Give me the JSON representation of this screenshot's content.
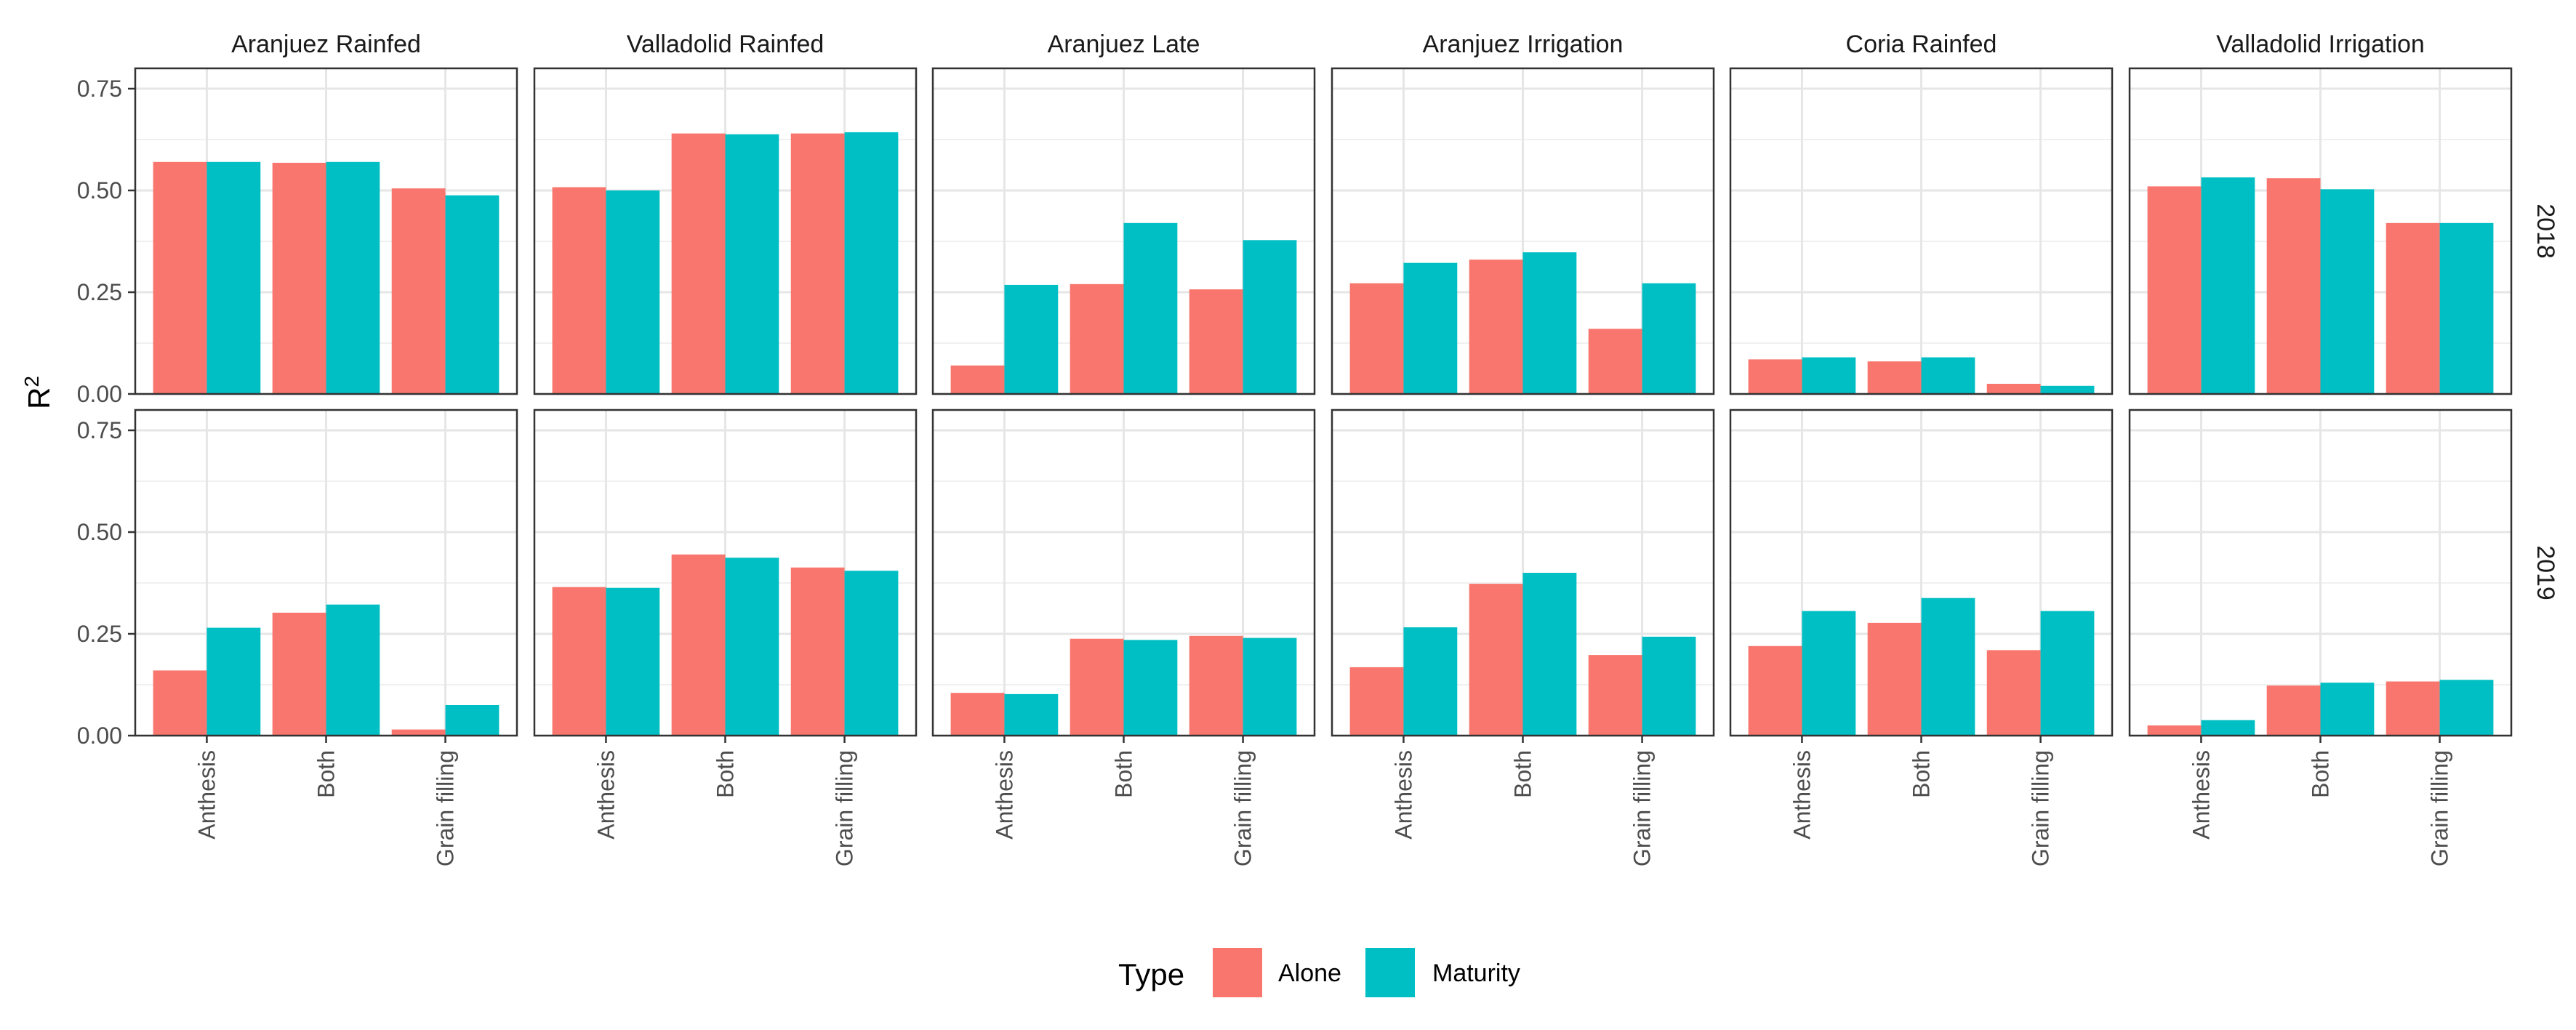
{
  "chart_data": {
    "type": "bar",
    "ylabel": "R",
    "ylabel_superscript": "2",
    "ylim": [
      0,
      0.8
    ],
    "yticks": [
      {
        "value": 0,
        "label": "0.00"
      },
      {
        "value": 0.25,
        "label": "0.25"
      },
      {
        "value": 0.5,
        "label": "0.50"
      },
      {
        "value": 0.75,
        "label": "0.75"
      }
    ],
    "categories": [
      "Anthesis",
      "Both",
      "Grain filling"
    ],
    "columns": [
      "Aranjuez Rainfed",
      "Valladolid Rainfed",
      "Aranjuez Late",
      "Aranjuez Irrigation",
      "Coria Rainfed",
      "Valladolid Irrigation"
    ],
    "rows": [
      "2018",
      "2019"
    ],
    "legend": {
      "title": "Type",
      "position": "bottom",
      "entries": [
        {
          "name": "Alone",
          "color": "#F8766D"
        },
        {
          "name": "Maturity",
          "color": "#00BFC4"
        }
      ]
    },
    "panels": [
      {
        "column": "Aranjuez Rainfed",
        "row": "2018",
        "series": [
          {
            "name": "Alone",
            "values": [
              0.57,
              0.568,
              0.505
            ]
          },
          {
            "name": "Maturity",
            "values": [
              0.57,
              0.57,
              0.488
            ]
          }
        ]
      },
      {
        "column": "Valladolid Rainfed",
        "row": "2018",
        "series": [
          {
            "name": "Alone",
            "values": [
              0.508,
              0.64,
              0.64
            ]
          },
          {
            "name": "Maturity",
            "values": [
              0.5,
              0.638,
              0.643
            ]
          }
        ]
      },
      {
        "column": "Aranjuez Late",
        "row": "2018",
        "series": [
          {
            "name": "Alone",
            "values": [
              0.07,
              0.27,
              0.257
            ]
          },
          {
            "name": "Maturity",
            "values": [
              0.268,
              0.42,
              0.378
            ]
          }
        ]
      },
      {
        "column": "Aranjuez Irrigation",
        "row": "2018",
        "series": [
          {
            "name": "Alone",
            "values": [
              0.272,
              0.33,
              0.16
            ]
          },
          {
            "name": "Maturity",
            "values": [
              0.322,
              0.348,
              0.272
            ]
          }
        ]
      },
      {
        "column": "Coria Rainfed",
        "row": "2018",
        "series": [
          {
            "name": "Alone",
            "values": [
              0.085,
              0.08,
              0.025
            ]
          },
          {
            "name": "Maturity",
            "values": [
              0.09,
              0.09,
              0.02
            ]
          }
        ]
      },
      {
        "column": "Valladolid Irrigation",
        "row": "2018",
        "series": [
          {
            "name": "Alone",
            "values": [
              0.51,
              0.53,
              0.42
            ]
          },
          {
            "name": "Maturity",
            "values": [
              0.532,
              0.503,
              0.42
            ]
          }
        ]
      },
      {
        "column": "Aranjuez Rainfed",
        "row": "2019",
        "series": [
          {
            "name": "Alone",
            "values": [
              0.16,
              0.302,
              0.015
            ]
          },
          {
            "name": "Maturity",
            "values": [
              0.265,
              0.322,
              0.075
            ]
          }
        ]
      },
      {
        "column": "Valladolid Rainfed",
        "row": "2019",
        "series": [
          {
            "name": "Alone",
            "values": [
              0.365,
              0.445,
              0.413
            ]
          },
          {
            "name": "Maturity",
            "values": [
              0.363,
              0.437,
              0.405
            ]
          }
        ]
      },
      {
        "column": "Aranjuez Late",
        "row": "2019",
        "series": [
          {
            "name": "Alone",
            "values": [
              0.105,
              0.238,
              0.245
            ]
          },
          {
            "name": "Maturity",
            "values": [
              0.102,
              0.235,
              0.24
            ]
          }
        ]
      },
      {
        "column": "Aranjuez Irrigation",
        "row": "2019",
        "series": [
          {
            "name": "Alone",
            "values": [
              0.168,
              0.373,
              0.198
            ]
          },
          {
            "name": "Maturity",
            "values": [
              0.266,
              0.4,
              0.243
            ]
          }
        ]
      },
      {
        "column": "Coria Rainfed",
        "row": "2019",
        "series": [
          {
            "name": "Alone",
            "values": [
              0.22,
              0.277,
              0.21
            ]
          },
          {
            "name": "Maturity",
            "values": [
              0.306,
              0.338,
              0.306
            ]
          }
        ]
      },
      {
        "column": "Valladolid Irrigation",
        "row": "2019",
        "series": [
          {
            "name": "Alone",
            "values": [
              0.025,
              0.123,
              0.133
            ]
          },
          {
            "name": "Maturity",
            "values": [
              0.038,
              0.13,
              0.137
            ]
          }
        ]
      }
    ]
  }
}
